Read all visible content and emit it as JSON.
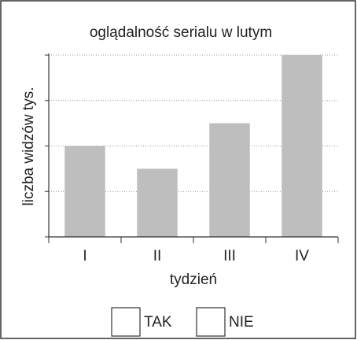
{
  "chart_data": {
    "type": "bar",
    "title": "oglądalność serialu w lutym",
    "y_label": "liczba widzów tys.",
    "x_label": "tydzień",
    "categories": [
      "I",
      "II",
      "III",
      "IV"
    ],
    "values": [
      2,
      1.5,
      2.5,
      4
    ],
    "color": "#bebebe",
    "ylim": [
      0,
      4
    ],
    "yticks": [
      0,
      1,
      2,
      3,
      4
    ],
    "grid": true,
    "options": [
      "TAK",
      "NIE"
    ]
  }
}
